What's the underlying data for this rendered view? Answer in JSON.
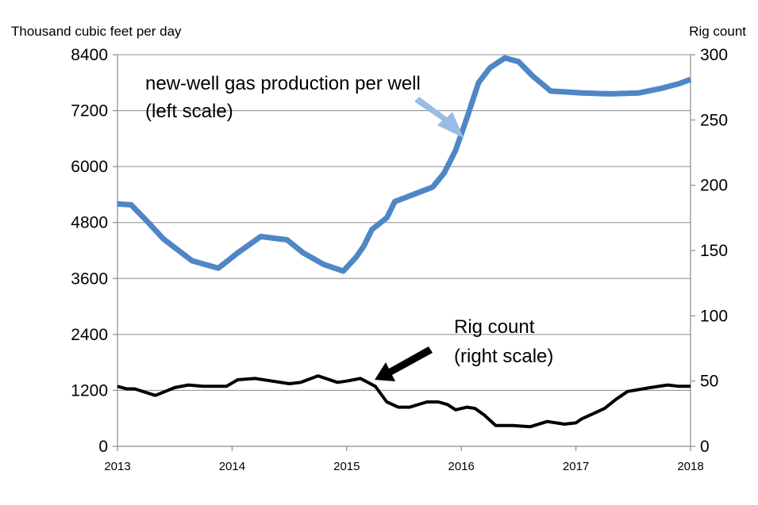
{
  "chart_data": {
    "type": "line",
    "left_axis": {
      "label": "Thousand cubic feet per day",
      "ylim": [
        0,
        8400
      ],
      "ticks": [
        0,
        1200,
        2400,
        3600,
        4800,
        6000,
        7200,
        8400
      ]
    },
    "right_axis": {
      "label": "Rig count",
      "ylim": [
        0,
        300
      ],
      "ticks": [
        0,
        50,
        100,
        150,
        200,
        250,
        300
      ]
    },
    "x_axis": {
      "xlim": [
        2013,
        2018
      ],
      "ticks": [
        "2013",
        "2014",
        "2015",
        "2016",
        "2017",
        "2018"
      ]
    },
    "grid": "horizontal",
    "series": [
      {
        "name": "new-well gas production per well",
        "axis": "left",
        "color": "#4f86c6",
        "x": [
          2013.0,
          2013.12,
          2013.25,
          2013.4,
          2013.65,
          2013.88,
          2014.05,
          2014.25,
          2014.48,
          2014.62,
          2014.8,
          2014.97,
          2015.08,
          2015.15,
          2015.22,
          2015.35,
          2015.42,
          2015.6,
          2015.75,
          2015.85,
          2015.95,
          2016.05,
          2016.15,
          2016.25,
          2016.38,
          2016.5,
          2016.62,
          2016.78,
          2016.92,
          2017.05,
          2017.3,
          2017.55,
          2017.75,
          2017.9,
          2018.0
        ],
        "values": [
          5200,
          5180,
          4850,
          4450,
          3980,
          3820,
          4150,
          4500,
          4430,
          4150,
          3900,
          3760,
          4050,
          4300,
          4650,
          4900,
          5250,
          5420,
          5560,
          5860,
          6350,
          7050,
          7800,
          8120,
          8330,
          8250,
          7950,
          7620,
          7600,
          7580,
          7560,
          7580,
          7680,
          7780,
          7870
        ]
      },
      {
        "name": "Rig count",
        "axis": "right",
        "color": "#000000",
        "x": [
          2013.0,
          2013.08,
          2013.15,
          2013.33,
          2013.5,
          2013.62,
          2013.75,
          2013.85,
          2013.95,
          2014.05,
          2014.2,
          2014.35,
          2014.5,
          2014.6,
          2014.75,
          2014.92,
          2015.0,
          2015.12,
          2015.25,
          2015.35,
          2015.45,
          2015.55,
          2015.7,
          2015.8,
          2015.88,
          2015.95,
          2016.05,
          2016.12,
          2016.2,
          2016.25,
          2016.3,
          2016.45,
          2016.6,
          2016.75,
          2016.9,
          2017.0,
          2017.05,
          2017.15,
          2017.25,
          2017.35,
          2017.45,
          2017.65,
          2017.8,
          2017.9,
          2018.0
        ],
        "values": [
          46,
          44,
          44,
          39,
          45,
          47,
          46,
          46,
          46,
          51,
          52,
          50,
          48,
          49,
          54,
          49,
          50,
          52,
          46,
          34,
          30,
          30,
          34,
          34,
          32,
          28,
          30,
          29,
          24,
          20,
          16,
          16,
          15,
          19,
          17,
          18,
          21,
          25,
          29,
          36,
          42,
          45,
          47,
          46,
          46
        ]
      }
    ],
    "annotations": [
      {
        "text": [
          "new-well gas production per well",
          "(left scale)"
        ],
        "color": "#98bce3",
        "points_to": "new-well gas production per well"
      },
      {
        "text": [
          "Rig count",
          "(right scale)"
        ],
        "color": "#000000",
        "points_to": "Rig count"
      }
    ]
  }
}
